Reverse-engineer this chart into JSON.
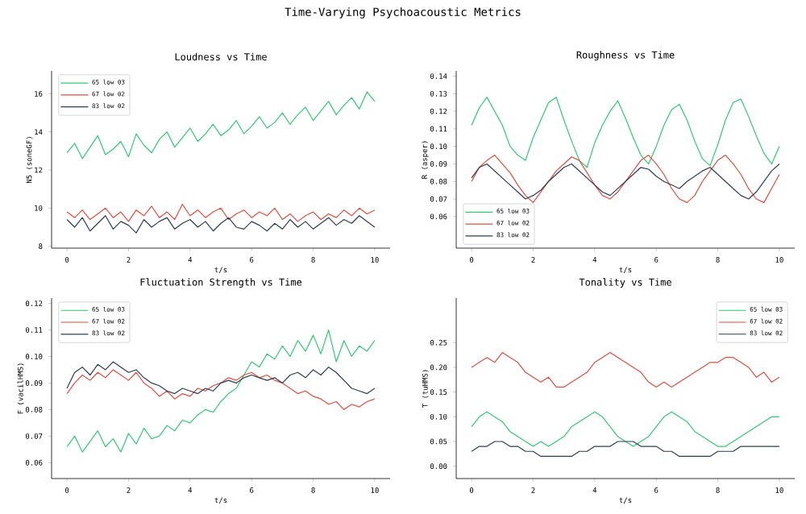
{
  "chart_data": [
    {
      "type": "line",
      "title": "Loudness vs Time",
      "xlabel": "t/s",
      "ylabel": "N5 (soneGF)",
      "annotations": [
        "Time-Varying Psychoacoustic Metrics"
      ],
      "legend": "top left",
      "x": [
        0,
        0.25,
        0.5,
        0.75,
        1,
        1.25,
        1.5,
        1.75,
        2,
        2.25,
        2.5,
        2.75,
        3,
        3.25,
        3.5,
        3.75,
        4,
        4.25,
        4.5,
        4.75,
        5,
        5.25,
        5.5,
        5.75,
        6,
        6.25,
        6.5,
        6.75,
        7,
        7.25,
        7.5,
        7.75,
        8,
        8.25,
        8.5,
        8.75,
        9,
        9.25,
        9.5,
        9.75,
        10
      ],
      "xlim": [
        -0.5,
        10.5
      ],
      "xticks": [
        0,
        2,
        4,
        6,
        8,
        10
      ],
      "ylim": [
        7.9,
        17.2
      ],
      "yticks": [
        8,
        10,
        12,
        14,
        16
      ],
      "series": [
        {
          "name": "65 low 03",
          "color": "#2ecc71",
          "values": [
            12.9,
            13.4,
            12.6,
            13.2,
            13.8,
            12.8,
            13.1,
            13.5,
            12.7,
            13.9,
            13.3,
            12.9,
            13.6,
            14.0,
            13.2,
            13.7,
            14.2,
            13.5,
            13.9,
            14.4,
            13.8,
            14.1,
            14.6,
            13.9,
            14.3,
            14.8,
            14.2,
            14.5,
            15.0,
            14.4,
            14.9,
            15.3,
            14.6,
            15.1,
            15.6,
            14.9,
            15.4,
            15.8,
            15.2,
            16.1,
            15.6
          ]
        },
        {
          "name": "67 low 02",
          "color": "#e74c3c",
          "values": [
            9.8,
            9.5,
            9.9,
            9.4,
            9.7,
            10.0,
            9.5,
            9.8,
            9.3,
            9.9,
            9.6,
            10.1,
            9.5,
            9.8,
            9.4,
            10.2,
            9.6,
            9.9,
            9.5,
            9.8,
            10.0,
            9.4,
            9.7,
            9.9,
            9.5,
            9.8,
            9.6,
            10.0,
            9.4,
            9.7,
            9.3,
            9.6,
            9.8,
            9.4,
            9.7,
            9.5,
            9.9,
            9.6,
            10.0,
            9.7,
            9.9
          ]
        },
        {
          "name": "83 low 02",
          "color": "#2c3e50",
          "values": [
            9.4,
            9.0,
            9.5,
            8.8,
            9.2,
            9.6,
            8.9,
            9.3,
            9.1,
            8.7,
            9.4,
            9.0,
            9.3,
            9.5,
            8.9,
            9.2,
            9.4,
            9.0,
            9.3,
            8.8,
            9.2,
            9.5,
            9.0,
            8.9,
            9.3,
            9.1,
            8.8,
            9.2,
            8.9,
            9.4,
            9.0,
            9.3,
            8.9,
            9.2,
            9.5,
            9.1,
            9.4,
            9.2,
            9.6,
            9.3,
            9.0
          ]
        }
      ]
    },
    {
      "type": "line",
      "title": "Roughness vs Time",
      "xlabel": "t/s",
      "ylabel": "R (asper)",
      "legend": "bottom left",
      "x": [
        0,
        0.25,
        0.5,
        0.75,
        1,
        1.25,
        1.5,
        1.75,
        2,
        2.25,
        2.5,
        2.75,
        3,
        3.25,
        3.5,
        3.75,
        4,
        4.25,
        4.5,
        4.75,
        5,
        5.25,
        5.5,
        5.75,
        6,
        6.25,
        6.5,
        6.75,
        7,
        7.25,
        7.5,
        7.75,
        8,
        8.25,
        8.5,
        8.75,
        9,
        9.25,
        9.5,
        9.75,
        10
      ],
      "xlim": [
        -0.5,
        10.5
      ],
      "xticks": [
        0,
        2,
        4,
        6,
        8,
        10
      ],
      "ylim": [
        0.042,
        0.143
      ],
      "yticks": [
        0.06,
        0.07,
        0.08,
        0.09,
        {
          "value": 0.1,
          "label": "0.10"
        },
        0.11,
        0.12,
        0.13,
        0.14
      ],
      "series": [
        {
          "name": "65 low 03",
          "color": "#2ecc71",
          "values": [
            0.112,
            0.122,
            0.128,
            0.12,
            0.112,
            0.1,
            0.095,
            0.092,
            0.105,
            0.115,
            0.125,
            0.128,
            0.115,
            0.103,
            0.092,
            0.088,
            0.102,
            0.112,
            0.12,
            0.126,
            0.116,
            0.105,
            0.095,
            0.09,
            0.1,
            0.112,
            0.121,
            0.124,
            0.115,
            0.103,
            0.093,
            0.089,
            0.101,
            0.115,
            0.125,
            0.127,
            0.117,
            0.106,
            0.096,
            0.09,
            0.1
          ]
        },
        {
          "name": "67 low 02",
          "color": "#e74c3c",
          "values": [
            0.08,
            0.088,
            0.092,
            0.095,
            0.09,
            0.085,
            0.078,
            0.072,
            0.068,
            0.074,
            0.08,
            0.086,
            0.09,
            0.094,
            0.092,
            0.085,
            0.078,
            0.072,
            0.07,
            0.074,
            0.08,
            0.086,
            0.092,
            0.095,
            0.09,
            0.084,
            0.076,
            0.07,
            0.068,
            0.072,
            0.08,
            0.086,
            0.092,
            0.095,
            0.09,
            0.084,
            0.076,
            0.07,
            0.068,
            0.076,
            0.084
          ]
        },
        {
          "name": "83 low 02",
          "color": "#2c3e50",
          "values": [
            0.082,
            0.088,
            0.09,
            0.086,
            0.082,
            0.078,
            0.074,
            0.07,
            0.072,
            0.075,
            0.08,
            0.084,
            0.088,
            0.09,
            0.086,
            0.082,
            0.078,
            0.074,
            0.072,
            0.076,
            0.08,
            0.084,
            0.088,
            0.087,
            0.083,
            0.08,
            0.078,
            0.076,
            0.08,
            0.083,
            0.086,
            0.088,
            0.084,
            0.08,
            0.076,
            0.072,
            0.07,
            0.074,
            0.08,
            0.086,
            0.09
          ]
        }
      ]
    },
    {
      "type": "line",
      "title": "Fluctuation Strength vs Time",
      "xlabel": "t/s",
      "ylabel": "F (vacilHMS)",
      "legend": "top left",
      "x": [
        0,
        0.25,
        0.5,
        0.75,
        1,
        1.25,
        1.5,
        1.75,
        2,
        2.25,
        2.5,
        2.75,
        3,
        3.25,
        3.5,
        3.75,
        4,
        4.25,
        4.5,
        4.75,
        5,
        5.25,
        5.5,
        5.75,
        6,
        6.25,
        6.5,
        6.75,
        7,
        7.25,
        7.5,
        7.75,
        8,
        8.25,
        8.5,
        8.75,
        9,
        9.25,
        9.5,
        9.75,
        10
      ],
      "xlim": [
        -0.5,
        10.5
      ],
      "xticks": [
        0,
        2,
        4,
        6,
        8,
        10
      ],
      "ylim": [
        0.054,
        0.122
      ],
      "yticks": [
        0.06,
        0.07,
        0.08,
        0.09,
        {
          "value": 0.1,
          "label": "0.10"
        },
        0.11,
        {
          "value": 0.12,
          "label": "0.12"
        }
      ],
      "series": [
        {
          "name": "65 low 03",
          "color": "#2ecc71",
          "values": [
            0.066,
            0.07,
            0.064,
            0.068,
            0.072,
            0.066,
            0.069,
            0.064,
            0.071,
            0.067,
            0.073,
            0.069,
            0.07,
            0.074,
            0.072,
            0.076,
            0.075,
            0.078,
            0.08,
            0.079,
            0.083,
            0.086,
            0.088,
            0.093,
            0.098,
            0.096,
            0.101,
            0.099,
            0.104,
            0.1,
            0.106,
            0.102,
            0.108,
            0.101,
            0.11,
            0.098,
            0.106,
            0.1,
            0.104,
            0.102,
            0.106
          ]
        },
        {
          "name": "67 low 02",
          "color": "#e74c3c",
          "values": [
            0.086,
            0.09,
            0.093,
            0.091,
            0.094,
            0.092,
            0.095,
            0.093,
            0.091,
            0.094,
            0.09,
            0.088,
            0.085,
            0.087,
            0.084,
            0.086,
            0.085,
            0.088,
            0.087,
            0.089,
            0.09,
            0.092,
            0.091,
            0.093,
            0.094,
            0.092,
            0.093,
            0.091,
            0.09,
            0.088,
            0.086,
            0.087,
            0.085,
            0.084,
            0.082,
            0.083,
            0.08,
            0.082,
            0.081,
            0.083,
            0.084
          ]
        },
        {
          "name": "83 low 02",
          "color": "#2c3e50",
          "values": [
            0.088,
            0.094,
            0.096,
            0.093,
            0.097,
            0.095,
            0.098,
            0.096,
            0.094,
            0.095,
            0.092,
            0.09,
            0.089,
            0.087,
            0.086,
            0.088,
            0.087,
            0.086,
            0.088,
            0.087,
            0.09,
            0.091,
            0.09,
            0.092,
            0.093,
            0.092,
            0.091,
            0.092,
            0.09,
            0.093,
            0.094,
            0.092,
            0.095,
            0.093,
            0.096,
            0.094,
            0.091,
            0.088,
            0.087,
            0.086,
            0.088
          ]
        }
      ]
    },
    {
      "type": "line",
      "title": "Tonality vs Time",
      "xlabel": "t/s",
      "ylabel": "T (tuHMS)",
      "legend": "top right",
      "x": [
        0,
        0.25,
        0.5,
        0.75,
        1,
        1.25,
        1.5,
        1.75,
        2,
        2.25,
        2.5,
        2.75,
        3,
        3.25,
        3.5,
        3.75,
        4,
        4.25,
        4.5,
        4.75,
        5,
        5.25,
        5.5,
        5.75,
        6,
        6.25,
        6.5,
        6.75,
        7,
        7.25,
        7.5,
        7.75,
        8,
        8.25,
        8.5,
        8.75,
        9,
        9.25,
        9.5,
        9.75,
        10
      ],
      "xlim": [
        -0.5,
        10.5
      ],
      "xticks": [
        0,
        2,
        4,
        6,
        8,
        10
      ],
      "ylim": [
        -0.025,
        0.34
      ],
      "yticks": [
        {
          "value": 0,
          "label": "0.00"
        },
        0.05,
        {
          "value": 0.1,
          "label": "0.10"
        },
        0.15,
        {
          "value": 0.2,
          "label": "0.20"
        },
        0.25
      ],
      "series": [
        {
          "name": "65 low 03",
          "color": "#2ecc71",
          "values": [
            0.08,
            0.1,
            0.11,
            0.1,
            0.09,
            0.07,
            0.06,
            0.05,
            0.04,
            0.05,
            0.04,
            0.05,
            0.06,
            0.08,
            0.09,
            0.1,
            0.11,
            0.1,
            0.08,
            0.06,
            0.05,
            0.04,
            0.05,
            0.06,
            0.08,
            0.1,
            0.11,
            0.1,
            0.09,
            0.07,
            0.06,
            0.05,
            0.04,
            0.04,
            0.05,
            0.06,
            0.07,
            0.08,
            0.09,
            0.1,
            0.1
          ]
        },
        {
          "name": "67 low 02",
          "color": "#e74c3c",
          "values": [
            0.2,
            0.21,
            0.22,
            0.21,
            0.23,
            0.22,
            0.21,
            0.19,
            0.18,
            0.17,
            0.18,
            0.16,
            0.16,
            0.17,
            0.18,
            0.19,
            0.21,
            0.22,
            0.23,
            0.22,
            0.21,
            0.2,
            0.19,
            0.17,
            0.16,
            0.17,
            0.16,
            0.17,
            0.18,
            0.19,
            0.2,
            0.21,
            0.21,
            0.22,
            0.22,
            0.21,
            0.2,
            0.18,
            0.19,
            0.17,
            0.18
          ]
        },
        {
          "name": "83 low 02",
          "color": "#2c3e50",
          "values": [
            0.03,
            0.04,
            0.04,
            0.05,
            0.05,
            0.04,
            0.04,
            0.03,
            0.03,
            0.02,
            0.02,
            0.02,
            0.02,
            0.02,
            0.03,
            0.03,
            0.04,
            0.04,
            0.04,
            0.05,
            0.05,
            0.05,
            0.04,
            0.04,
            0.04,
            0.03,
            0.03,
            0.02,
            0.02,
            0.02,
            0.02,
            0.02,
            0.03,
            0.03,
            0.03,
            0.04,
            0.04,
            0.04,
            0.04,
            0.04,
            0.04
          ]
        }
      ]
    }
  ]
}
